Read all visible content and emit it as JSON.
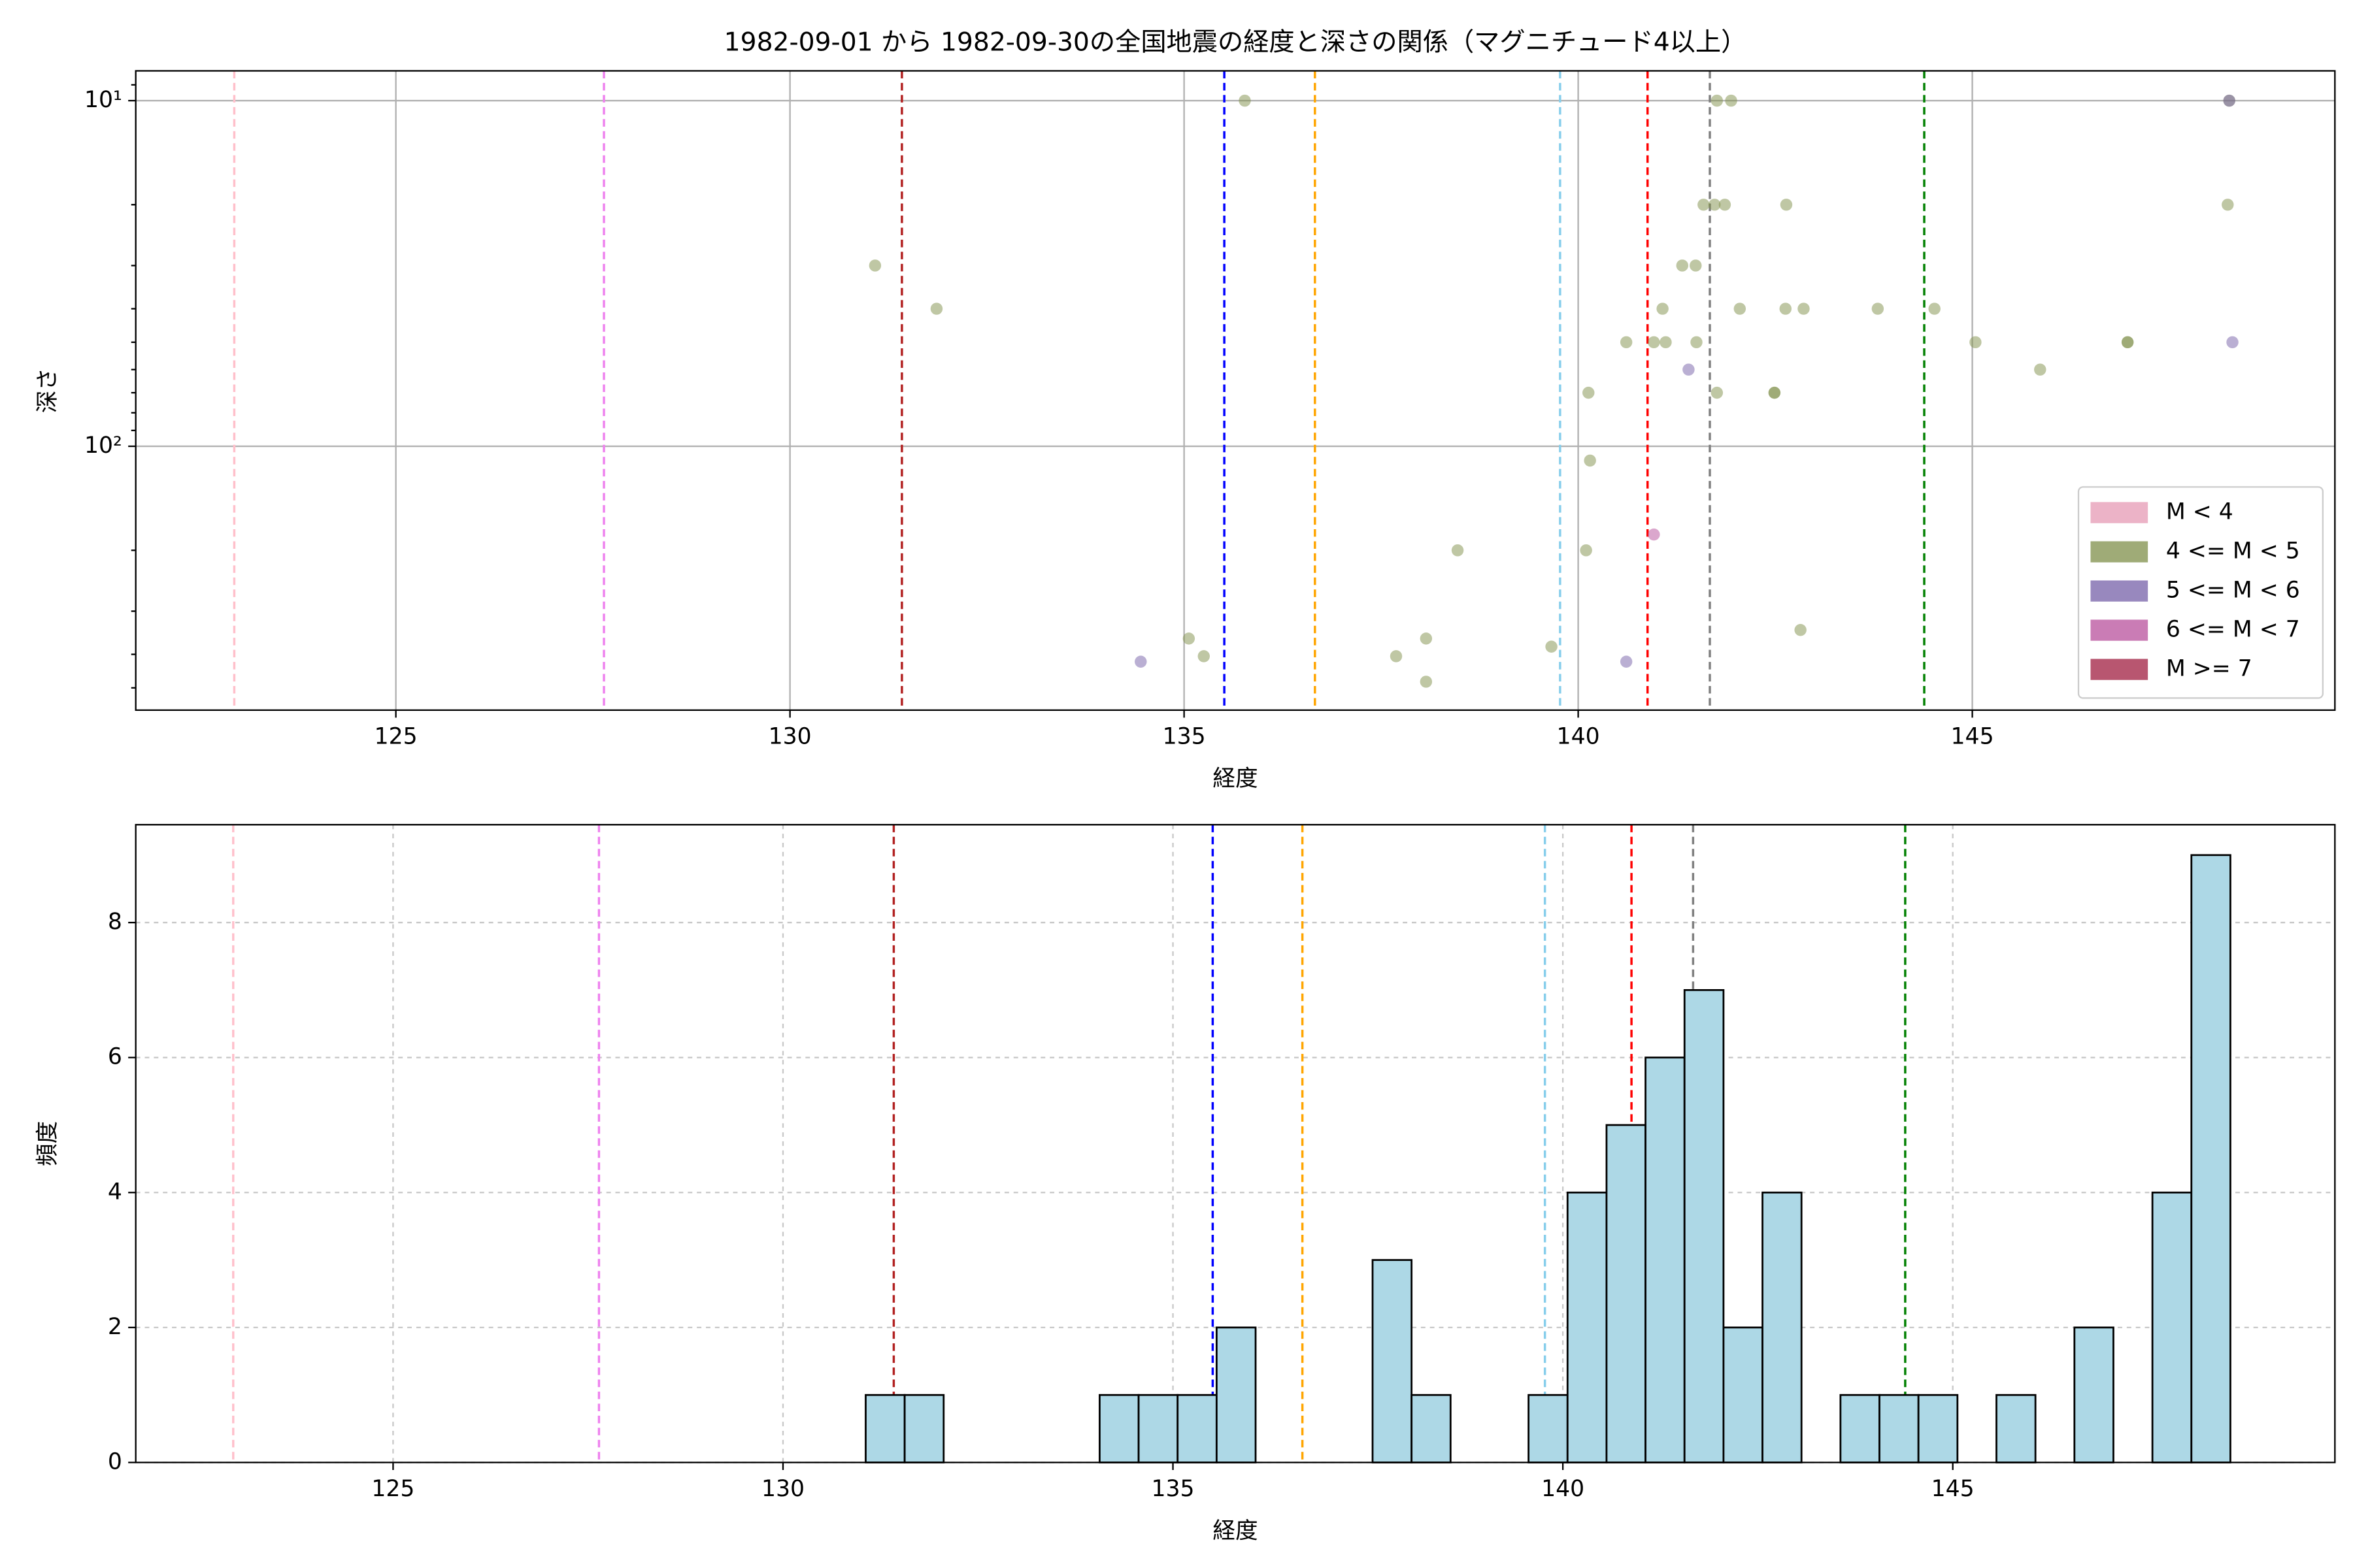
{
  "chart_data": [
    {
      "type": "scatter",
      "title": "1982-09-01 から 1982-09-30の全国地震の経度と深さの関係（マグニチュード4以上）",
      "x_label": "経度",
      "y_label": "深さ",
      "xlim": [
        121.7,
        149.6
      ],
      "xticks": [
        125,
        130,
        135,
        140,
        145
      ],
      "ylim": [
        8.2,
        580
      ],
      "y_scale": "log",
      "y_inverted": true,
      "yticks": [
        {
          "value": 10,
          "label": "10¹"
        },
        {
          "value": 100,
          "label": "10²"
        }
      ],
      "y_minor_ticks": [
        9,
        20,
        30,
        40,
        50,
        60,
        70,
        80,
        90,
        200,
        300,
        400,
        500
      ],
      "grid": true,
      "grid_style": "solid",
      "legend": "lower right",
      "alpha": 0.5,
      "reference_lines": [
        {
          "x": 122.95,
          "color": "pink"
        },
        {
          "x": 127.64,
          "color": "violet"
        },
        {
          "x": 131.42,
          "color": "firebrick"
        },
        {
          "x": 135.51,
          "color": "blue"
        },
        {
          "x": 136.66,
          "color": "orange"
        },
        {
          "x": 139.77,
          "color": "skyblue"
        },
        {
          "x": 140.88,
          "color": "red"
        },
        {
          "x": 141.67,
          "color": "gray"
        },
        {
          "x": 144.39,
          "color": "green"
        }
      ],
      "series": [
        {
          "name": "M < 4",
          "color": "#e69ab4",
          "x": [],
          "y": []
        },
        {
          "name": "4 <= M < 5",
          "color": "#7f8f4a",
          "x": [
            131.08,
            131.86,
            135.77,
            135.06,
            135.25,
            137.69,
            138.07,
            138.07,
            138.47,
            139.66,
            140.1,
            140.15,
            140.13,
            140.61,
            140.96,
            141.11,
            141.07,
            141.32,
            141.49,
            141.5,
            141.59,
            141.73,
            141.86,
            141.76,
            141.94,
            141.76,
            142.05,
            142.49,
            142.49,
            142.63,
            142.64,
            142.82,
            142.86,
            143.8,
            144.52,
            145.04,
            145.86,
            146.97,
            146.97,
            148.24,
            148.26
          ],
          "y": [
            30,
            40,
            10,
            360,
            405,
            405,
            360,
            480,
            200,
            380,
            200,
            110,
            70,
            50,
            50,
            50,
            40,
            30,
            30,
            50,
            20,
            20,
            20,
            10,
            10,
            70,
            40,
            70,
            70,
            40,
            20,
            340,
            40,
            40,
            40,
            50,
            60,
            50,
            50,
            20,
            10
          ]
        },
        {
          "name": "5 <= M < 6",
          "color": "#7560a8",
          "x": [
            134.45,
            140.61,
            141.4,
            148.26,
            148.3
          ],
          "y": [
            420,
            420,
            60,
            10,
            50
          ]
        },
        {
          "name": "6 <= M < 7",
          "color": "#b8509c",
          "x": [
            140.96
          ],
          "y": [
            180
          ]
        },
        {
          "name": "M >= 7",
          "color": "#a01e40",
          "x": [],
          "y": []
        }
      ]
    },
    {
      "type": "histogram",
      "x_label": "経度",
      "y_label": "頻度",
      "xlim": [
        121.7,
        149.9
      ],
      "xticks": [
        125,
        130,
        135,
        140,
        145
      ],
      "ylim": [
        0,
        9.45
      ],
      "yticks": [
        0,
        2,
        4,
        6,
        8
      ],
      "grid": true,
      "grid_style": "dashed",
      "color": "#add8e6",
      "edgecolor": "#000000",
      "reference_lines": [
        {
          "x": 122.95,
          "color": "pink"
        },
        {
          "x": 127.64,
          "color": "violet"
        },
        {
          "x": 131.42,
          "color": "firebrick"
        },
        {
          "x": 135.51,
          "color": "blue"
        },
        {
          "x": 136.66,
          "color": "orange"
        },
        {
          "x": 139.77,
          "color": "skyblue"
        },
        {
          "x": 140.88,
          "color": "red"
        },
        {
          "x": 141.67,
          "color": "gray"
        },
        {
          "x": 144.39,
          "color": "green"
        }
      ],
      "bins": [
        131.06,
        131.56,
        132.06,
        132.56,
        133.06,
        133.56,
        134.06,
        134.56,
        135.06,
        135.56,
        136.06,
        136.56,
        137.06,
        137.56,
        138.06,
        138.56,
        139.06,
        139.56,
        140.06,
        140.56,
        141.06,
        141.56,
        142.06,
        142.56,
        143.06,
        143.56,
        144.06,
        144.56,
        145.06,
        145.56,
        146.06,
        146.56,
        147.06,
        147.56,
        148.06,
        148.56
      ],
      "values": [
        1,
        1,
        0,
        0,
        0,
        0,
        1,
        1,
        1,
        2,
        0,
        0,
        0,
        3,
        1,
        0,
        0,
        1,
        4,
        5,
        6,
        7,
        2,
        4,
        0,
        1,
        1,
        1,
        0,
        1,
        0,
        2,
        0,
        4,
        9
      ]
    }
  ]
}
